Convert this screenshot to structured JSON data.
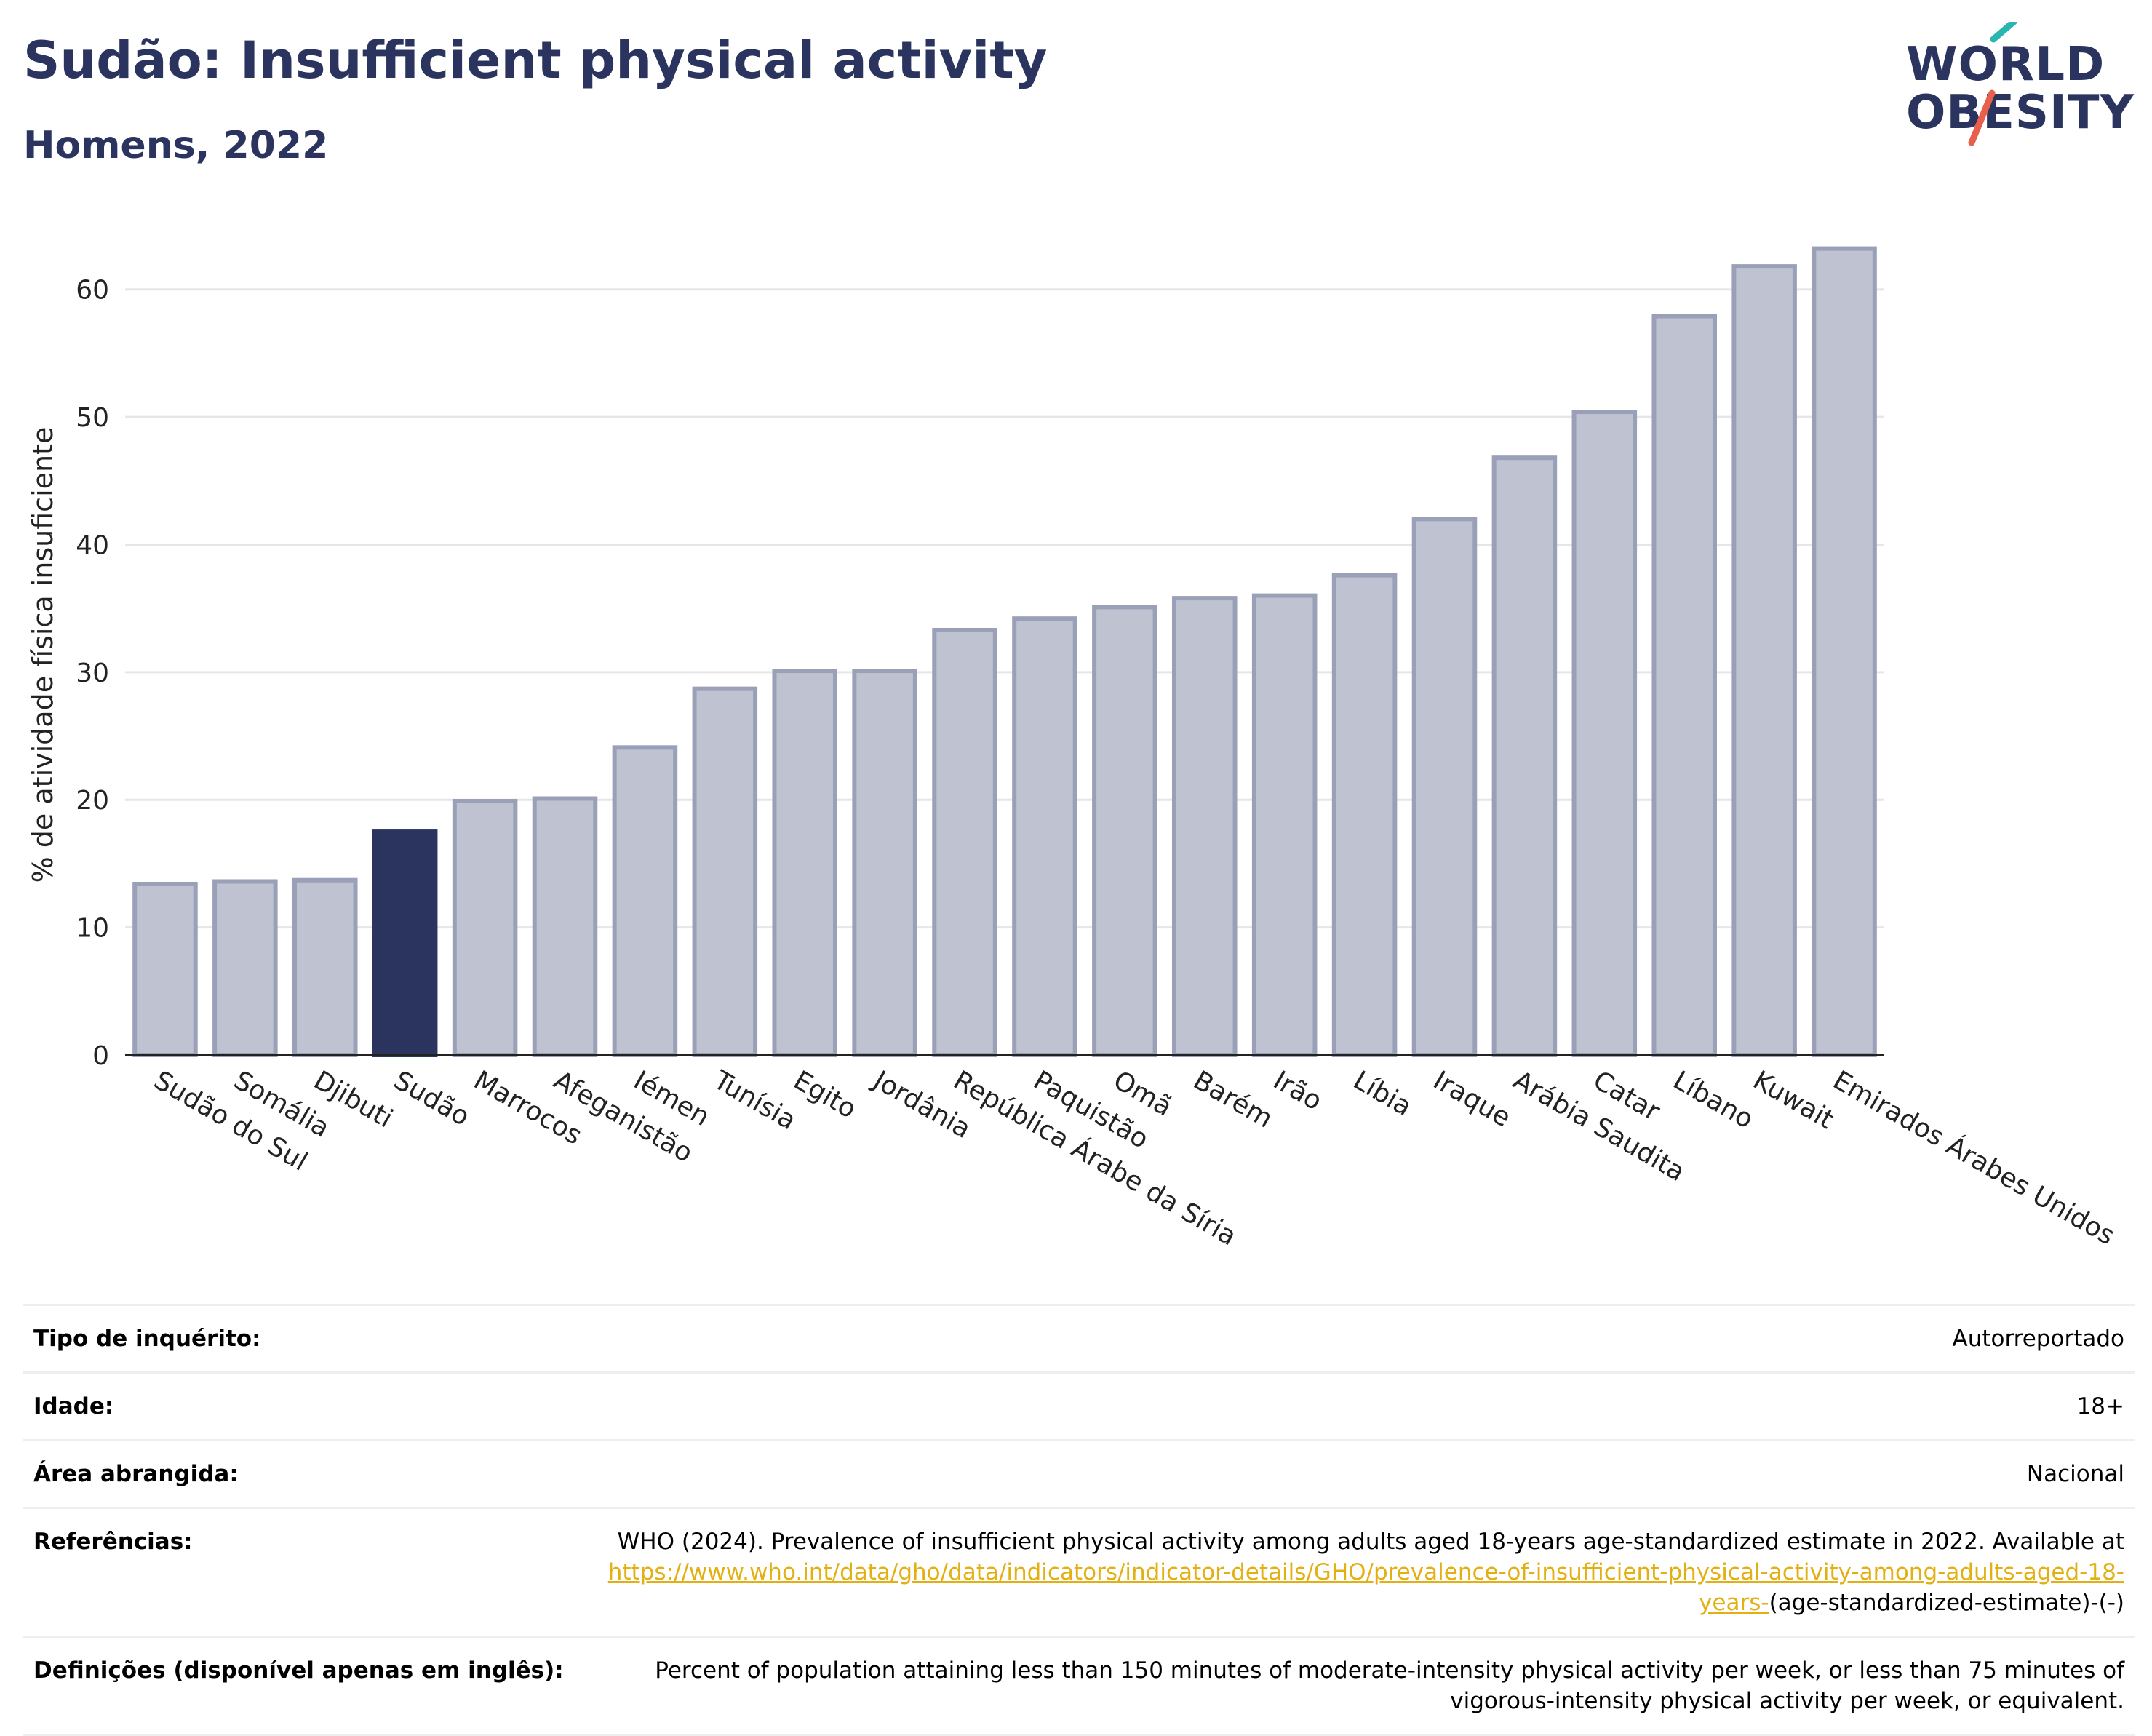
{
  "header": {
    "title": "Sudão: Insufficient physical activity",
    "subtitle": "Homens, 2022"
  },
  "logo": {
    "line1": "WORLD",
    "line2": "OBESITY",
    "slash_colors": [
      "#29b6b0",
      "#e8604c"
    ]
  },
  "colors": {
    "title": "#2a345e",
    "bar_default": "#bfc2d1",
    "bar_border": "#9aa0b8",
    "bar_highlight": "#2a345e",
    "link": "#e3b013"
  },
  "chart_data": {
    "type": "bar",
    "title": "",
    "xlabel": "",
    "ylabel": "% de atividade física insuficiente",
    "ylim": [
      0,
      65
    ],
    "yticks": [
      0,
      10,
      20,
      30,
      40,
      50,
      60
    ],
    "grid": true,
    "highlight": "Sudão",
    "categories": [
      "Sudão do Sul",
      "Somália",
      "Djibuti",
      "Sudão",
      "Marrocos",
      "Afeganistão",
      "Iémen",
      "Tunísia",
      "Egito",
      "Jordânia",
      "República Árabe da Síria",
      "Paquistão",
      "Omã",
      "Barém",
      "Irão",
      "Líbia",
      "Iraque",
      "Arábia Saudita",
      "Catar",
      "Líbano",
      "Kuwait",
      "Emirados Árabes Unidos"
    ],
    "values": [
      13.4,
      13.6,
      13.7,
      17.5,
      19.9,
      20.1,
      24.1,
      28.7,
      30.1,
      30.1,
      33.3,
      34.2,
      35.1,
      35.8,
      36.0,
      37.6,
      42.0,
      46.8,
      50.4,
      57.9,
      61.8,
      63.2
    ]
  },
  "meta": {
    "rows": [
      {
        "label": "Tipo de inquérito:",
        "value": "Autorreportado"
      },
      {
        "label": "Idade:",
        "value": "18+"
      },
      {
        "label": "Área abrangida:",
        "value": "Nacional"
      }
    ],
    "references": {
      "label": "Referências:",
      "text": "WHO (2024). Prevalence of insufficient physical activity among adults aged 18-years age-standardized estimate in 2022. Available at",
      "link": "https://www.who.int/data/gho/data/indicators/indicator-details/GHO/prevalence-of-insufficient-physical-activity-among-adults-aged-18-years-",
      "suffix": "(age-standardized-estimate)-(-)"
    },
    "definitions": {
      "label": "Definições (disponível apenas em inglês):",
      "text": "Percent of population attaining less than 150 minutes of moderate-intensity physical activity per week, or less than 75 minutes of vigorous-intensity physical activity per week, or equivalent."
    }
  }
}
